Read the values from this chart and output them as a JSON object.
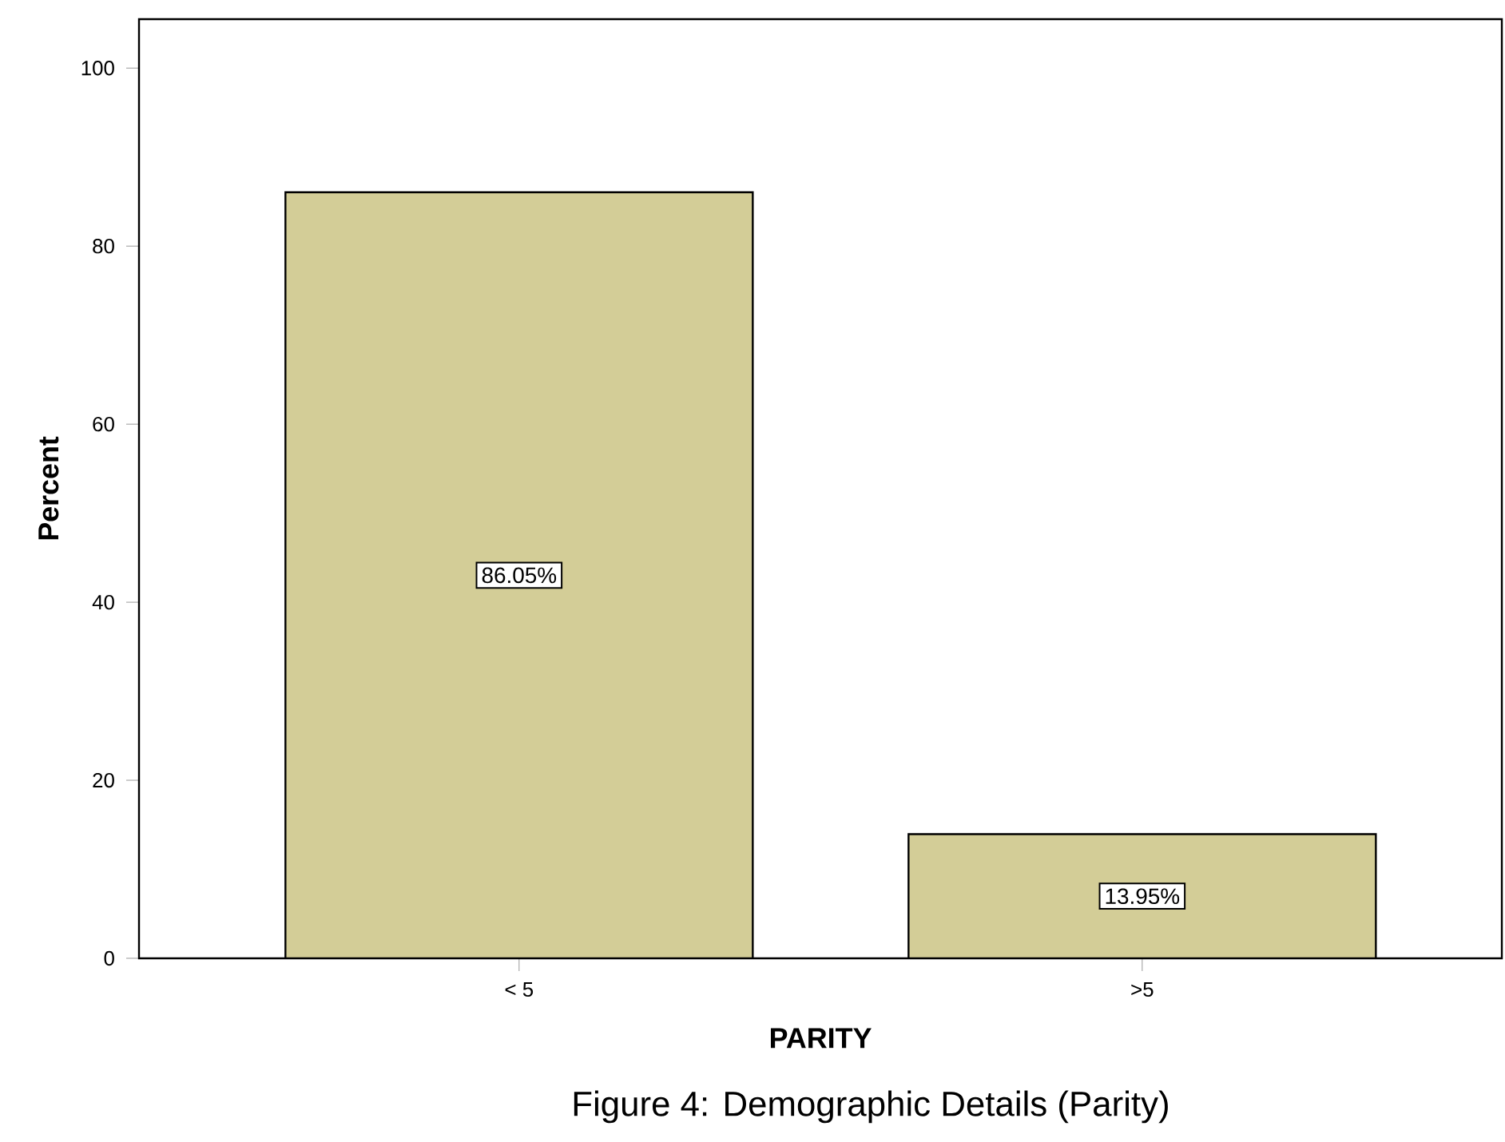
{
  "chart_data": {
    "type": "bar",
    "xlabel": "PARITY",
    "ylabel": "Percent",
    "categories": [
      "< 5",
      ">5"
    ],
    "values": [
      86.05,
      13.95
    ],
    "value_labels": [
      "86.05%",
      "13.95%"
    ],
    "color": "#d3cd97",
    "ylim": [
      0,
      105.5
    ],
    "yticks": [
      0,
      20,
      40,
      60,
      80,
      100
    ],
    "grid": false,
    "annotations": [
      "Figure 4: Demographic Details (Parity)"
    ]
  }
}
